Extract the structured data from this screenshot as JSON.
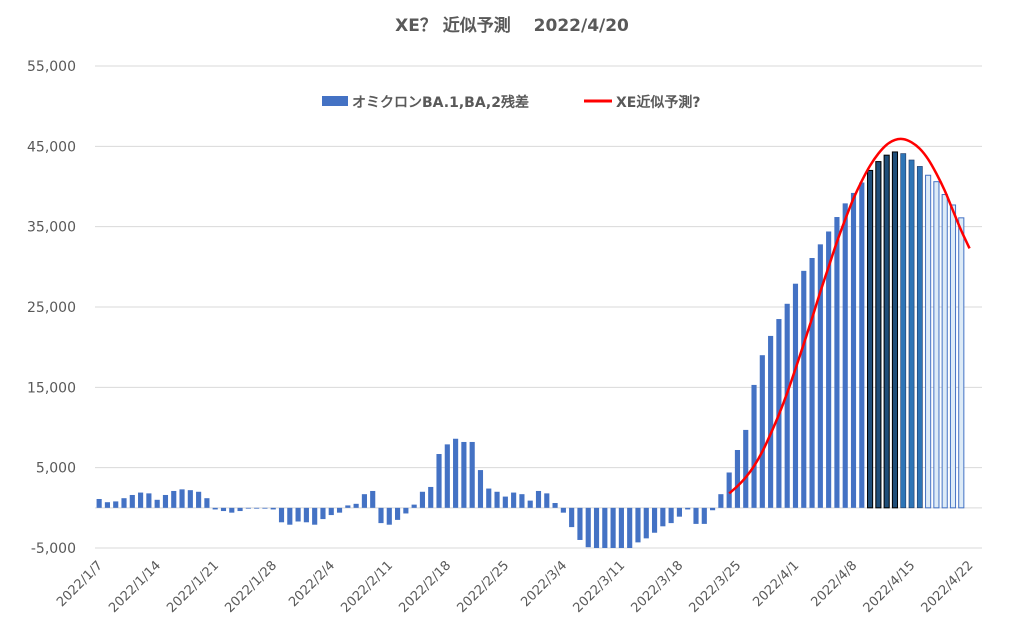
{
  "chart_data": {
    "type": "bar",
    "title": "XE？ 近似予測　 2022/4/20",
    "ylim": [
      -5000,
      55000
    ],
    "y_ticks": [
      "55,000",
      "45,000",
      "35,000",
      "25,000",
      "15,000",
      "5,000",
      "-5,000"
    ],
    "y_tick_values": [
      55000,
      45000,
      35000,
      25000,
      15000,
      5000,
      -5000
    ],
    "x_tick_labels": [
      "2022/1/7",
      "2022/1/14",
      "2022/1/21",
      "2022/1/28",
      "2022/2/4",
      "2022/2/11",
      "2022/2/18",
      "2022/2/25",
      "2022/3/4",
      "2022/3/11",
      "2022/3/18",
      "2022/3/25",
      "2022/4/1",
      "2022/4/8",
      "2022/4/15",
      "2022/4/22"
    ],
    "x_start": "2022/1/7",
    "grid": true,
    "legend": {
      "position": "top",
      "items": [
        "オミクロンBA.1,BA,2残差",
        "XE近似予測?"
      ]
    },
    "series": [
      {
        "name": "オミクロンBA.1,BA,2残差",
        "type": "bar",
        "color": "#4472c4",
        "values": [
          1100,
          700,
          800,
          1200,
          1600,
          1900,
          1800,
          1000,
          1600,
          2100,
          2300,
          2200,
          2000,
          1200,
          -200,
          -400,
          -600,
          -400,
          -100,
          -100,
          -100,
          -200,
          -1800,
          -2100,
          -1700,
          -1800,
          -2100,
          -1400,
          -900,
          -600,
          300,
          500,
          1700,
          2100,
          -1900,
          -2100,
          -1500,
          -700,
          400,
          2000,
          2600,
          6700,
          7900,
          8600,
          8200,
          8200,
          4700,
          2400,
          2000,
          1400,
          1900,
          1700,
          900,
          2100,
          1800,
          600,
          -600,
          -2400,
          -4000,
          -4900,
          -5000,
          -5000,
          -5000,
          -5000,
          -5000,
          -4300,
          -3800,
          -3100,
          -2300,
          -1900,
          -1100,
          -200,
          -2000,
          -2000,
          -300,
          1700,
          4400,
          7200,
          9700,
          15300,
          19000,
          21400,
          23500,
          25400,
          27900,
          29500,
          31100,
          32800,
          34400,
          36200,
          37900,
          39200,
          40500,
          42000,
          43100,
          43900,
          44300,
          44100,
          43300,
          42500,
          41400,
          40600,
          39000,
          37700,
          36100
        ],
        "bar_style": {
          "highlight_dark_from": "2022/4/10",
          "highlight_dark_to": "2022/4/13",
          "highlight_mid_from": "2022/4/14",
          "highlight_mid_to": "2022/4/16",
          "outline_from": "2022/4/17",
          "dark_color": "#1f4e79",
          "mid_color": "#2e75b6",
          "light_color": "#ddebf7"
        }
      },
      {
        "name": "XE近似予測?",
        "type": "line",
        "color": "#ff0000",
        "x_start": "2022/3/24",
        "values": [
          1800,
          2700,
          3800,
          5200,
          7000,
          9200,
          11600,
          14300,
          17300,
          20400,
          23600,
          26900,
          30000,
          33100,
          35900,
          38500,
          40700,
          42600,
          44100,
          45200,
          45800,
          45900,
          45500,
          44700,
          43400,
          41600,
          39500,
          37000,
          34500,
          32300
        ]
      }
    ]
  }
}
